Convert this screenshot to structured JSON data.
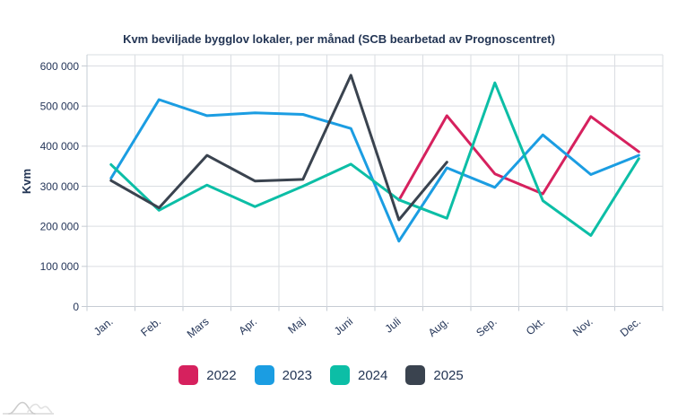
{
  "chart_data": {
    "type": "line",
    "title": "Kvm beviljade bygglov lokaler, per månad (SCB bearbetad av Prognoscentret)",
    "ylabel": "Kvm",
    "xlabel": "",
    "categories": [
      "Jan.",
      "Feb.",
      "Mars",
      "Apr.",
      "Maj",
      "Juni",
      "Juli",
      "Aug.",
      "Sep.",
      "Okt.",
      "Nov.",
      "Dec."
    ],
    "ylim": [
      0,
      600000
    ],
    "y_ticks": [
      {
        "value": 0,
        "label": "0"
      },
      {
        "value": 100000,
        "label": "100 000"
      },
      {
        "value": 200000,
        "label": "200 000"
      },
      {
        "value": 300000,
        "label": "300 000"
      },
      {
        "value": 400000,
        "label": "400 000"
      },
      {
        "value": 500000,
        "label": "500 000"
      },
      {
        "value": 600000,
        "label": "600 000"
      }
    ],
    "grid": true,
    "legend_position": "bottom",
    "series": [
      {
        "name": "2022",
        "color": "#d6215e",
        "values": [
          null,
          null,
          null,
          null,
          null,
          null,
          265000,
          476000,
          331000,
          281000,
          474000,
          386000
        ]
      },
      {
        "name": "2023",
        "color": "#1b9de2",
        "values": [
          320000,
          516000,
          476000,
          483000,
          479000,
          444000,
          163000,
          346000,
          297000,
          428000,
          329000,
          377000
        ]
      },
      {
        "name": "2024",
        "color": "#0cbea6",
        "values": [
          354000,
          240000,
          303000,
          249000,
          300000,
          355000,
          266000,
          220000,
          558000,
          264000,
          177000,
          369000
        ]
      },
      {
        "name": "2025",
        "color": "#3a434f",
        "values": [
          314000,
          246000,
          377000,
          313000,
          317000,
          577000,
          216000,
          360000,
          null,
          null,
          null,
          null
        ]
      }
    ]
  },
  "footer": {
    "logo": "prognoscentret-mountains-logo"
  },
  "colors": {
    "text": "#26375a",
    "title_text": "#233554",
    "grid": "#dadde2",
    "axis": "#c6ccd4",
    "background": "#ffffff"
  }
}
